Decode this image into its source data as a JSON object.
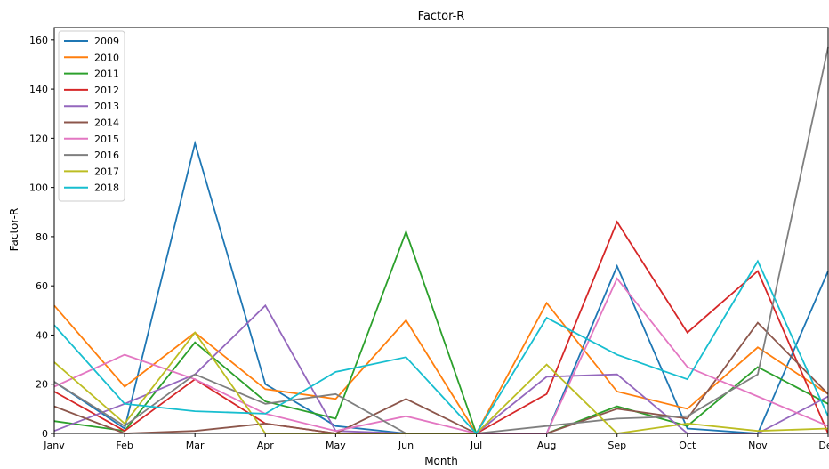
{
  "chart_data": {
    "type": "line",
    "title": "Factor-R",
    "xlabel": "Month",
    "ylabel": "Factor-R",
    "categories": [
      "Janv",
      "Feb",
      "Mar",
      "Apr",
      "May",
      "Jun",
      "Jul",
      "Aug",
      "Sep",
      "Oct",
      "Nov",
      "Dec"
    ],
    "ylim": [
      0,
      165
    ],
    "yticks": [
      0,
      20,
      40,
      60,
      80,
      100,
      120,
      140,
      160
    ],
    "grid": false,
    "legend_position": "top-left",
    "series": [
      {
        "name": "2009",
        "color": "#1f77b4",
        "values": [
          21,
          2,
          118,
          20,
          3,
          0,
          0,
          0,
          68,
          2,
          0,
          66
        ]
      },
      {
        "name": "2010",
        "color": "#ff7f0e",
        "values": [
          52,
          19,
          41,
          18,
          14,
          46,
          0,
          53,
          17,
          10,
          35,
          16
        ]
      },
      {
        "name": "2011",
        "color": "#2ca02c",
        "values": [
          5,
          1,
          37,
          13,
          6,
          82,
          0,
          0,
          11,
          3,
          27,
          12
        ]
      },
      {
        "name": "2012",
        "color": "#d62728",
        "values": [
          17,
          1,
          22,
          4,
          0,
          0,
          0,
          16,
          86,
          41,
          66,
          0
        ]
      },
      {
        "name": "2013",
        "color": "#9467bd",
        "values": [
          1,
          12,
          24,
          52,
          1,
          0,
          0,
          23,
          24,
          0,
          0,
          15
        ]
      },
      {
        "name": "2014",
        "color": "#8c564b",
        "values": [
          11,
          0,
          1,
          4,
          0,
          14,
          0,
          0,
          10,
          6,
          45,
          16
        ]
      },
      {
        "name": "2015",
        "color": "#e377c2",
        "values": [
          19,
          32,
          22,
          8,
          1,
          7,
          0,
          0,
          63,
          27,
          15,
          3
        ]
      },
      {
        "name": "2016",
        "color": "#7f7f7f",
        "values": [
          21,
          3,
          24,
          12,
          16,
          0,
          0,
          3,
          6,
          7,
          24,
          157
        ]
      },
      {
        "name": "2017",
        "color": "#bcbd22",
        "values": [
          29,
          4,
          41,
          0,
          0,
          0,
          0,
          28,
          0,
          4,
          1,
          2
        ]
      },
      {
        "name": "2018",
        "color": "#17becf",
        "values": [
          44,
          12,
          9,
          8,
          25,
          31,
          0,
          47,
          32,
          22,
          70,
          7
        ]
      }
    ]
  }
}
